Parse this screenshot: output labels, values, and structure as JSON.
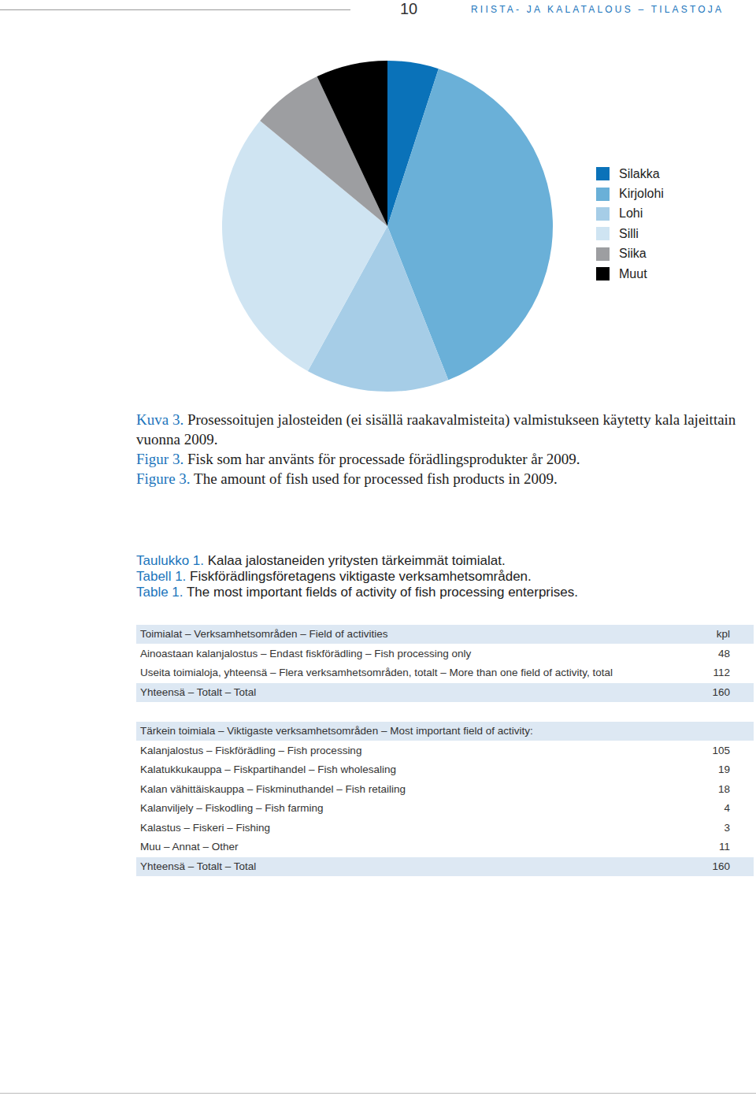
{
  "header": {
    "page": "10",
    "series_title": "RIISTA- JA KALATALOUS – TILASTOJA"
  },
  "chart_data": {
    "type": "pie",
    "categories": [
      "Silakka",
      "Kirjolohi",
      "Lohi",
      "Silli",
      "Siika",
      "Muut"
    ],
    "values": [
      5,
      39,
      14,
      28,
      7,
      7
    ],
    "colors": [
      "#0a72b9",
      "#6ab0d8",
      "#a6cde7",
      "#cfe4f2",
      "#9d9ea1",
      "#000000"
    ],
    "legend": "right"
  },
  "figure_captions": [
    {
      "label": "Kuva 3.",
      "text": "Prosessoitujen jalosteiden (ei sisällä raakavalmisteita) valmistukseen käytetty kala lajeittain vuonna 2009."
    },
    {
      "label": "Figur 3.",
      "text": "Fisk som har använts för processade förädlingsprodukter år 2009."
    },
    {
      "label": "Figure 3.",
      "text": "The amount of fish used for processed fish products in 2009."
    }
  ],
  "table_captions": [
    {
      "label": "Taulukko 1.",
      "text": "Kalaa jalostaneiden yritysten tärkeimmät toimialat."
    },
    {
      "label": "Tabell 1.",
      "text": "Fiskförädlingsföretagens viktigaste verksamhetsområden."
    },
    {
      "label": "Table 1.",
      "text": "The most important fields of activity of fish processing enterprises."
    }
  ],
  "table": {
    "sections": [
      {
        "header": [
          "Toimialat – Verksamhetsområden – Field of activities",
          "kpl"
        ],
        "rows": [
          [
            "Ainoastaan kalanjalostus – Endast fiskförädling – Fish processing only",
            "48"
          ],
          [
            "Useita toimialoja, yhteensä – Flera verksamhetsområden, totalt – More than one field of activity, total",
            "112"
          ]
        ],
        "total": [
          "Yhteensä – Totalt – Total",
          "160"
        ]
      },
      {
        "header": [
          "Tärkein toimiala – Viktigaste verksamhetsområden – Most important  field of activity:"
        ],
        "rows": [
          [
            "Kalanjalostus – Fiskförädling – Fish processing",
            "105"
          ],
          [
            "Kalatukkukauppa – Fiskpartihandel – Fish wholesaling",
            "19"
          ],
          [
            "Kalan vähittäiskauppa – Fiskminuthandel – Fish retailing",
            "18"
          ],
          [
            "Kalanviljely – Fiskodling – Fish farming",
            "4"
          ],
          [
            "Kalastus – Fiskeri – Fishing",
            "3"
          ],
          [
            "Muu – Annat – Other",
            "11"
          ]
        ],
        "total": [
          "Yhteensä – Totalt – Total",
          "160"
        ]
      }
    ]
  }
}
